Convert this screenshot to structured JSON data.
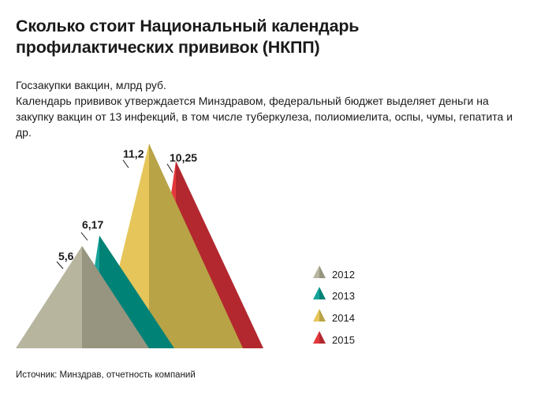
{
  "title": "Сколько стоит Национальный  календарь\nпрофилактических прививок (НКПП)",
  "subtitle": "Госзакупки вакцин, млрд руб.",
  "description": "Календарь прививок утверждается Минздравом, федеральный бюджет выделяет деньги на закупку вакцин от 13 инфекций, в том числе туберкулеза, полиомиелита, оспы, чумы, гепатита и др.",
  "source": "Источник: Минздрав, отчетность компаний",
  "chart_data": {
    "type": "bar",
    "categories": [
      "2012",
      "2013",
      "2014",
      "2015"
    ],
    "values": [
      5.6,
      6.17,
      11.2,
      10.25
    ],
    "value_labels": [
      "5,6",
      "6,17",
      "11,2",
      "10,25"
    ],
    "unit": "млрд руб.",
    "legend_position": "right",
    "colors": {
      "2012": {
        "light": "#b7b59e",
        "dark": "#97957f"
      },
      "2013": {
        "light": "#17a39a",
        "dark": "#008277"
      },
      "2014": {
        "light": "#e6c65a",
        "dark": "#b8a346"
      },
      "2015": {
        "light": "#e3393c",
        "dark": "#b3282f"
      }
    }
  }
}
